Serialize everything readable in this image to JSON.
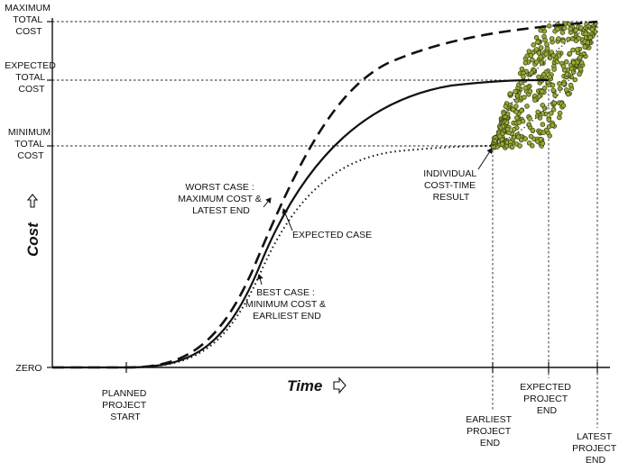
{
  "y_axis": {
    "title": "Cost",
    "arrow_icon": "outline-up-arrow-icon",
    "levels": [
      {
        "key": "maximum",
        "lines": [
          "MAXIMUM",
          "TOTAL",
          "COST"
        ]
      },
      {
        "key": "expected",
        "lines": [
          "EXPECTED",
          "TOTAL",
          "COST"
        ]
      },
      {
        "key": "minimum",
        "lines": [
          "MINIMUM",
          "TOTAL",
          "COST"
        ]
      },
      {
        "key": "zero",
        "lines": [
          "ZERO"
        ]
      }
    ]
  },
  "x_axis": {
    "title": "Time",
    "arrow_icon": "outline-right-arrow-icon",
    "markers": [
      {
        "key": "planned-start",
        "lines": [
          "PLANNED",
          "PROJECT",
          "START"
        ]
      },
      {
        "key": "earliest-end",
        "lines": [
          "EARLIEST",
          "PROJECT",
          "END"
        ]
      },
      {
        "key": "expected-end",
        "lines": [
          "EXPECTED",
          "PROJECT",
          "END"
        ]
      },
      {
        "key": "latest-end",
        "lines": [
          "LATEST",
          "PROJECT",
          "END"
        ]
      }
    ]
  },
  "annotations": {
    "worst_case": [
      "WORST CASE :",
      "MAXIMUM COST &",
      "LATEST END"
    ],
    "expected_case": [
      "EXPECTED CASE"
    ],
    "best_case": [
      "BEST CASE :",
      "MINIMUM COST &",
      "EARLIEST END"
    ],
    "result_point": [
      "INDIVIDUAL",
      "COST-TIME",
      "RESULT"
    ]
  },
  "colors": {
    "ink": "#111111",
    "scatter_fill": "#9aa838",
    "scatter_stroke": "#3e4a10"
  }
}
